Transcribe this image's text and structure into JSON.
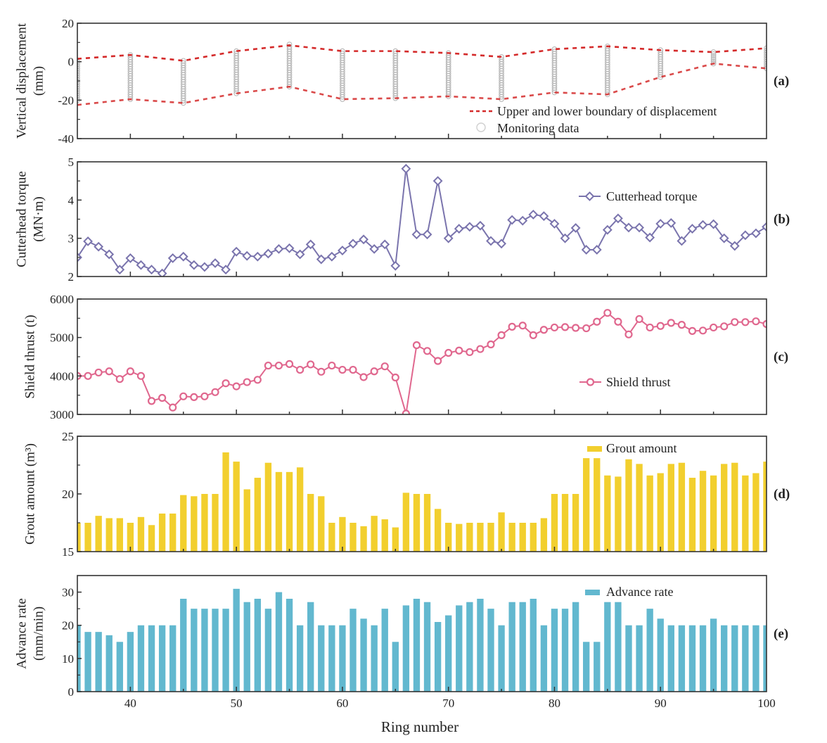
{
  "chart_data": [
    {
      "id": "a",
      "type": "scatter",
      "panel_label": "(a)",
      "ylabel": [
        "Vertical displacement",
        "(mm)"
      ],
      "ylim": [
        -40,
        20
      ],
      "yticks": [
        -40,
        -20,
        0,
        20
      ],
      "legend": [
        {
          "label": "Upper and lower boundary of displacement",
          "marker": "dashed-line"
        },
        {
          "label": "Monitoring data",
          "marker": "open-circle"
        }
      ],
      "legend_position": "bottom-right",
      "colors": {
        "boundary": "#d42a2a",
        "monitoring": "#b8b8b8"
      },
      "x": [
        35,
        40,
        45,
        50,
        55,
        60,
        65,
        70,
        75,
        80,
        85,
        90,
        95,
        100
      ],
      "upper": [
        1.5,
        3.5,
        0.5,
        5.5,
        8.5,
        5.5,
        5.5,
        4.5,
        2.5,
        6.5,
        8,
        6,
        5,
        7
      ],
      "lower": [
        -22.5,
        -19.5,
        -21.5,
        -16.5,
        -13,
        -19.5,
        -19,
        -18,
        -19.5,
        -16,
        -17,
        -8,
        -1,
        -3.5
      ],
      "monitoring_ranges": [
        {
          "x": 35,
          "min": -20,
          "max": 0
        },
        {
          "x": 40,
          "min": -19.5,
          "max": 3.5
        },
        {
          "x": 45,
          "min": -21.5,
          "max": 0.5
        },
        {
          "x": 50,
          "min": -16.5,
          "max": 5.5
        },
        {
          "x": 55,
          "min": -13,
          "max": 9
        },
        {
          "x": 60,
          "min": -19.5,
          "max": 5.5
        },
        {
          "x": 65,
          "min": -19,
          "max": 5.5
        },
        {
          "x": 70,
          "min": -18,
          "max": 4.5
        },
        {
          "x": 75,
          "min": -19.5,
          "max": 2.5
        },
        {
          "x": 80,
          "min": -16,
          "max": 6.5
        },
        {
          "x": 85,
          "min": -17,
          "max": 8
        },
        {
          "x": 90,
          "min": -8,
          "max": 6
        },
        {
          "x": 95,
          "min": -1,
          "max": 5
        },
        {
          "x": 100,
          "min": -3.5,
          "max": 7
        }
      ]
    },
    {
      "id": "b",
      "type": "line",
      "panel_label": "(b)",
      "ylabel": [
        "Cutterhead torque",
        "(MN·m)"
      ],
      "ylim": [
        2,
        5
      ],
      "yticks": [
        2,
        3,
        4,
        5
      ],
      "legend": [
        {
          "label": "Cutterhead torque",
          "marker": "open-diamond"
        }
      ],
      "legend_position": "top-right",
      "color": "#7a74ad",
      "x_start": 35,
      "values": [
        2.5,
        2.92,
        2.78,
        2.58,
        2.18,
        2.48,
        2.3,
        2.18,
        2.08,
        2.48,
        2.52,
        2.3,
        2.25,
        2.35,
        2.18,
        2.65,
        2.54,
        2.52,
        2.6,
        2.72,
        2.74,
        2.58,
        2.84,
        2.45,
        2.52,
        2.68,
        2.86,
        2.97,
        2.72,
        2.84,
        2.28,
        4.82,
        3.1,
        3.1,
        4.5,
        3.0,
        3.25,
        3.3,
        3.33,
        2.93,
        2.86,
        3.48,
        3.46,
        3.62,
        3.58,
        3.38,
        3.0,
        3.27,
        2.7,
        2.7,
        3.22,
        3.52,
        3.28,
        3.28,
        3.02,
        3.38,
        3.4,
        2.93,
        3.25,
        3.35,
        3.37,
        3.0,
        2.8,
        3.08,
        3.13,
        3.3
      ]
    },
    {
      "id": "c",
      "type": "line",
      "panel_label": "(c)",
      "ylabel": [
        "Shield thrust (t)"
      ],
      "ylim": [
        3000,
        6000
      ],
      "yticks": [
        3000,
        4000,
        5000,
        6000
      ],
      "legend": [
        {
          "label": "Shield thrust",
          "marker": "open-circle"
        }
      ],
      "legend_position": "bottom-right",
      "color": "#e0678e",
      "x_start": 35,
      "values": [
        4000,
        4000,
        4090,
        4120,
        3920,
        4120,
        4000,
        3350,
        3430,
        3180,
        3470,
        3450,
        3470,
        3580,
        3810,
        3730,
        3840,
        3900,
        4270,
        4270,
        4310,
        4160,
        4300,
        4110,
        4270,
        4160,
        4160,
        3970,
        4120,
        4250,
        3960,
        3020,
        4800,
        4650,
        4390,
        4600,
        4660,
        4620,
        4700,
        4820,
        5060,
        5280,
        5310,
        5060,
        5200,
        5260,
        5270,
        5250,
        5240,
        5410,
        5640,
        5410,
        5080,
        5480,
        5260,
        5300,
        5380,
        5330,
        5170,
        5180,
        5260,
        5290,
        5400,
        5400,
        5420,
        5350
      ]
    },
    {
      "id": "d",
      "type": "bar",
      "panel_label": "(d)",
      "ylabel": [
        "Grout amount (m³)"
      ],
      "ylim": [
        15,
        25
      ],
      "yticks": [
        15,
        20,
        25
      ],
      "legend": [
        {
          "label": "Grout amount",
          "marker": "bar"
        }
      ],
      "legend_position": "top-right",
      "color": "#f2cf2e",
      "x_start": 35,
      "values": [
        17.5,
        17.5,
        18.1,
        17.9,
        17.9,
        17.5,
        18.0,
        17.3,
        18.3,
        18.3,
        19.9,
        19.8,
        20.0,
        20.0,
        23.6,
        22.8,
        20.4,
        21.4,
        22.7,
        21.9,
        21.9,
        22.3,
        20.0,
        19.8,
        17.5,
        18.0,
        17.5,
        17.2,
        18.1,
        17.8,
        17.1,
        20.1,
        20.0,
        20.0,
        18.7,
        17.5,
        17.4,
        17.5,
        17.5,
        17.5,
        18.4,
        17.5,
        17.5,
        17.5,
        17.9,
        20.0,
        20.0,
        20.0,
        23.1,
        23.1,
        21.6,
        21.5,
        23.0,
        22.6,
        21.6,
        21.8,
        22.6,
        22.7,
        21.4,
        22.0,
        21.6,
        22.6,
        22.7,
        21.6,
        21.8,
        22.8
      ]
    },
    {
      "id": "e",
      "type": "bar",
      "panel_label": "(e)",
      "ylabel": [
        "Advance rate",
        "(mm/min)"
      ],
      "ylim": [
        0,
        35
      ],
      "yticks": [
        0,
        10,
        20,
        30
      ],
      "legend": [
        {
          "label": "Advance rate",
          "marker": "bar"
        }
      ],
      "legend_position": "top-right",
      "color": "#62b8cf",
      "x_start": 35,
      "values": [
        20,
        18,
        18,
        17,
        15,
        18,
        20,
        20,
        20,
        20,
        28,
        25,
        25,
        25,
        25,
        31,
        27,
        28,
        25,
        30,
        28,
        20,
        27,
        20,
        20,
        20,
        25,
        22,
        20,
        25,
        15,
        26,
        28,
        27,
        21,
        23,
        26,
        27,
        28,
        25,
        20,
        27,
        27,
        28,
        20,
        25,
        25,
        27,
        15,
        15,
        27,
        27,
        20,
        20,
        25,
        22,
        20,
        20,
        20,
        20,
        22,
        20,
        20,
        20,
        20,
        20
      ]
    }
  ],
  "x_axis": {
    "label": "Ring number",
    "xlim": [
      35,
      100
    ],
    "ticks": [
      40,
      50,
      60,
      70,
      80,
      90,
      100
    ],
    "minor_ticks": [
      35,
      45,
      55,
      65,
      75,
      85,
      95
    ]
  }
}
